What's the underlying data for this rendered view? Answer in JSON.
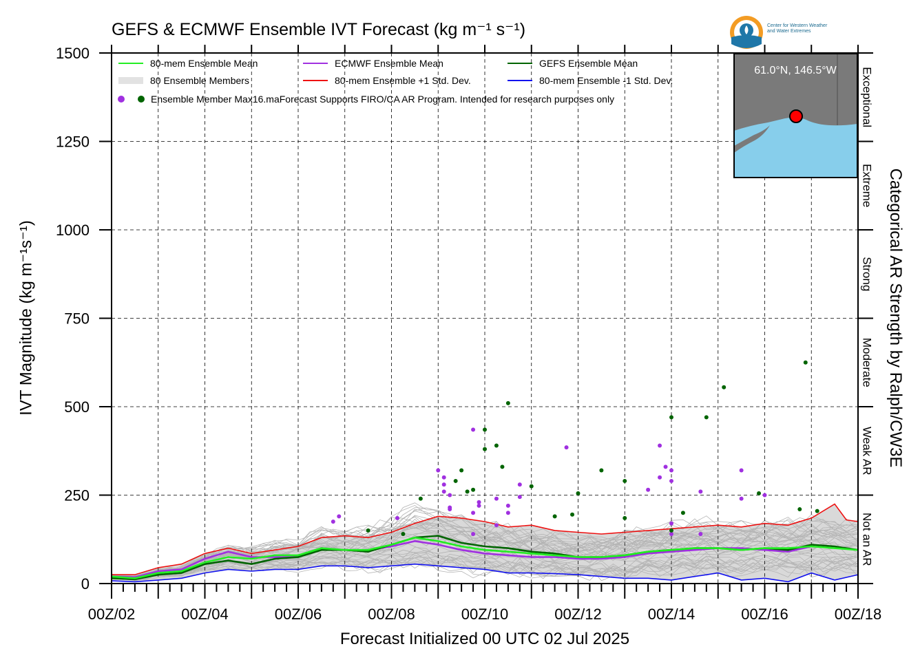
{
  "chart_data": {
    "type": "line",
    "title": "GEFS & ECMWF Ensemble IVT Forecast (kg m⁻¹ s⁻¹)",
    "ylabel": "IVT Magnitude (kg m⁻¹s⁻¹)",
    "xlabel": "Forecast Initialized 00 UTC 02 Jul 2025",
    "right_label": "Categorical AR Strength by Ralph/CW3E",
    "ylim": [
      0,
      1500
    ],
    "xlim_hours": [
      0,
      384
    ],
    "y_ticks": [
      0,
      250,
      500,
      750,
      1000,
      1250,
      1500
    ],
    "x_tick_labels": [
      "00Z/02",
      "00Z/04",
      "00Z/06",
      "00Z/08",
      "00Z/10",
      "00Z/12",
      "00Z/14",
      "00Z/16",
      "00Z/18"
    ],
    "grid": true,
    "ar_categories": [
      {
        "label": "Not an AR",
        "range": [
          0,
          250
        ]
      },
      {
        "label": "Weak AR",
        "range": [
          250,
          500
        ]
      },
      {
        "label": "Moderate",
        "range": [
          500,
          750
        ]
      },
      {
        "label": "Strong",
        "range": [
          750,
          1000
        ]
      },
      {
        "label": "Extreme",
        "range": [
          1000,
          1250
        ]
      },
      {
        "label": "Exceptional",
        "range": [
          1250,
          1500
        ]
      }
    ],
    "legend": {
      "placement": "top-left",
      "entries": [
        {
          "label": "80-mem Ensemble Mean",
          "color": "#22ee22"
        },
        {
          "label": "ECMWF Ensemble Mean",
          "color": "#a030e0"
        },
        {
          "label": "GEFS Ensemble Mean",
          "color": "#006400"
        },
        {
          "label": "80 Ensemble Members",
          "color": "#b0b0b0"
        },
        {
          "label": "80-mem Ensemble +1 Std. Dev.",
          "color": "#ee1111"
        },
        {
          "label": "80-mem Ensemble -1 Std. Dev.",
          "color": "#1111ee"
        }
      ],
      "note": "Ensemble Member Max16.maForecast Supports FIRO/CA AR Program. Intended for research purposes only"
    },
    "inset_map": {
      "label": "61.0°N, 146.5°W",
      "land_color": "#7a7a7a",
      "ocean_color": "#87ceeb"
    },
    "series": [
      {
        "name": "80-mem Ensemble Mean",
        "color": "#22ee22",
        "x": [
          0,
          12,
          24,
          36,
          48,
          60,
          72,
          84,
          96,
          108,
          120,
          132,
          144,
          156,
          168,
          180,
          192,
          204,
          216,
          228,
          240,
          252,
          264,
          276,
          288,
          300,
          312,
          324,
          336,
          348,
          360,
          372,
          384
        ],
        "y": [
          20,
          15,
          30,
          35,
          60,
          75,
          70,
          80,
          80,
          100,
          95,
          95,
          110,
          130,
          120,
          105,
          95,
          90,
          85,
          80,
          75,
          75,
          80,
          90,
          95,
          100,
          100,
          95,
          100,
          100,
          105,
          100,
          95
        ]
      },
      {
        "name": "ECMWF Ensemble Mean",
        "color": "#a030e0",
        "x": [
          0,
          12,
          24,
          36,
          48,
          60,
          72,
          84,
          96,
          108,
          120,
          132,
          144,
          156,
          168,
          180,
          192,
          204,
          216,
          228,
          240,
          252,
          264,
          276,
          288,
          300,
          312,
          324,
          336,
          348,
          360
        ],
        "y": [
          20,
          18,
          35,
          40,
          70,
          90,
          75,
          75,
          75,
          100,
          95,
          95,
          105,
          120,
          110,
          95,
          85,
          80,
          75,
          75,
          70,
          70,
          75,
          85,
          90,
          95,
          100,
          100,
          95,
          90,
          105
        ]
      },
      {
        "name": "GEFS Ensemble Mean",
        "color": "#006400",
        "x": [
          0,
          12,
          24,
          36,
          48,
          60,
          72,
          84,
          96,
          108,
          120,
          132,
          144,
          156,
          168,
          180,
          192,
          204,
          216,
          228,
          240,
          252,
          264,
          276,
          288,
          300,
          312,
          324,
          336,
          348,
          360,
          372,
          384
        ],
        "y": [
          15,
          12,
          25,
          30,
          55,
          65,
          55,
          70,
          75,
          95,
          95,
          90,
          110,
          130,
          135,
          115,
          105,
          100,
          90,
          85,
          75,
          75,
          80,
          90,
          95,
          100,
          100,
          95,
          100,
          95,
          110,
          105,
          95
        ]
      },
      {
        "name": "80-mem Ensemble +1 Std. Dev.",
        "color": "#ee1111",
        "x": [
          0,
          12,
          24,
          36,
          48,
          60,
          72,
          84,
          96,
          108,
          120,
          132,
          144,
          156,
          168,
          180,
          192,
          204,
          216,
          228,
          240,
          252,
          264,
          276,
          288,
          300,
          312,
          324,
          336,
          348,
          360,
          372,
          378,
          384
        ],
        "y": [
          25,
          25,
          45,
          55,
          85,
          100,
          85,
          95,
          105,
          130,
          135,
          130,
          145,
          170,
          190,
          185,
          175,
          160,
          165,
          150,
          145,
          140,
          145,
          150,
          155,
          160,
          165,
          160,
          170,
          165,
          185,
          225,
          180,
          175
        ]
      },
      {
        "name": "80-mem Ensemble -1 Std. Dev.",
        "color": "#1111ee",
        "x": [
          0,
          12,
          24,
          36,
          48,
          60,
          72,
          84,
          96,
          108,
          120,
          132,
          144,
          156,
          168,
          180,
          192,
          204,
          216,
          228,
          240,
          252,
          264,
          276,
          288,
          300,
          312,
          324,
          336,
          348,
          360,
          372,
          384
        ],
        "y": [
          8,
          5,
          10,
          15,
          30,
          40,
          35,
          40,
          40,
          50,
          50,
          45,
          50,
          55,
          50,
          45,
          40,
          30,
          30,
          28,
          25,
          20,
          15,
          15,
          10,
          20,
          30,
          10,
          15,
          5,
          30,
          10,
          25
        ]
      }
    ],
    "member_max_ecmwf": {
      "color": "#a030e0",
      "x": [
        114,
        117,
        147,
        168,
        171,
        171,
        171,
        174,
        174,
        174,
        186,
        186,
        186,
        189,
        189,
        198,
        198,
        204,
        204,
        210,
        210,
        234,
        276,
        282,
        282,
        285,
        288,
        288,
        288,
        288,
        303,
        303,
        324,
        324,
        336
      ],
      "y": [
        175,
        190,
        185,
        320,
        300,
        280,
        260,
        250,
        215,
        210,
        435,
        200,
        140,
        230,
        220,
        165,
        240,
        220,
        200,
        280,
        245,
        385,
        265,
        390,
        300,
        330,
        140,
        290,
        170,
        320,
        140,
        260,
        320,
        240,
        250
      ]
    },
    "member_max_gefs": {
      "color": "#006400",
      "x": [
        132,
        150,
        159,
        177,
        180,
        183,
        186,
        192,
        192,
        198,
        201,
        204,
        216,
        228,
        237,
        240,
        252,
        264,
        264,
        288,
        288,
        294,
        306,
        315,
        333,
        354,
        357,
        363
      ],
      "y": [
        150,
        140,
        240,
        290,
        320,
        260,
        265,
        435,
        380,
        390,
        330,
        510,
        275,
        190,
        195,
        255,
        320,
        185,
        290,
        470,
        150,
        200,
        470,
        555,
        255,
        210,
        625,
        205
      ]
    }
  },
  "branding": {
    "logo_line1": "Center for Western Weather",
    "logo_line2": "and Water Extremes"
  }
}
